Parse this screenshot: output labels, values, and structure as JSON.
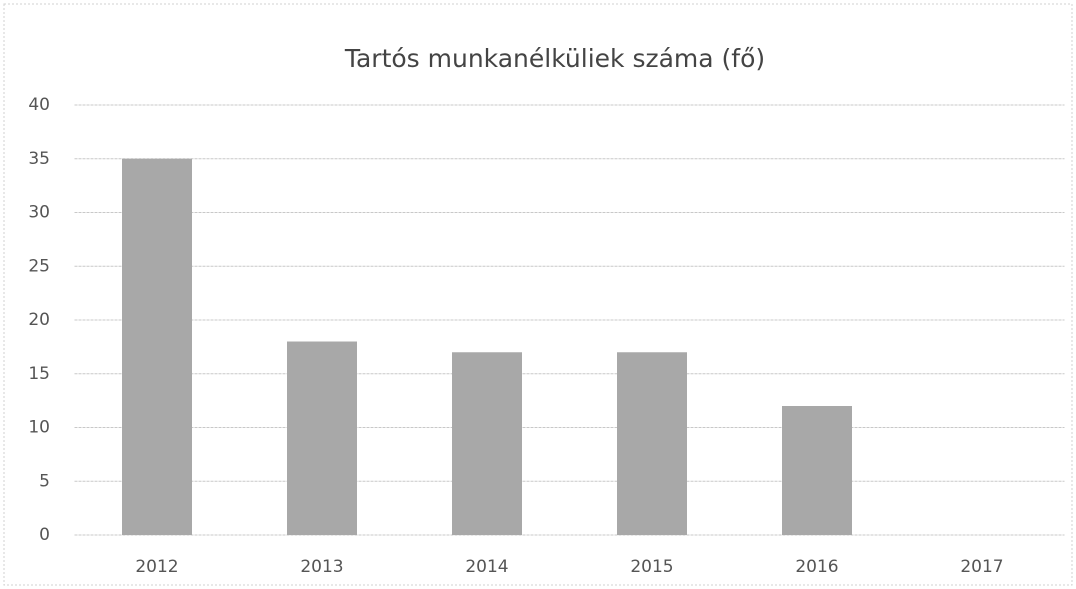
{
  "chart_data": {
    "type": "bar",
    "title": "Tartós munkanélküliek száma (fő)",
    "categories": [
      "2012",
      "2013",
      "2014",
      "2015",
      "2016",
      "2017"
    ],
    "values": [
      35,
      18,
      17,
      17,
      12,
      0
    ],
    "color": "#a8a8a8",
    "ylim": [
      0,
      40
    ],
    "yticks": [
      0,
      5,
      10,
      15,
      20,
      25,
      30,
      35,
      40
    ],
    "grid": true
  }
}
